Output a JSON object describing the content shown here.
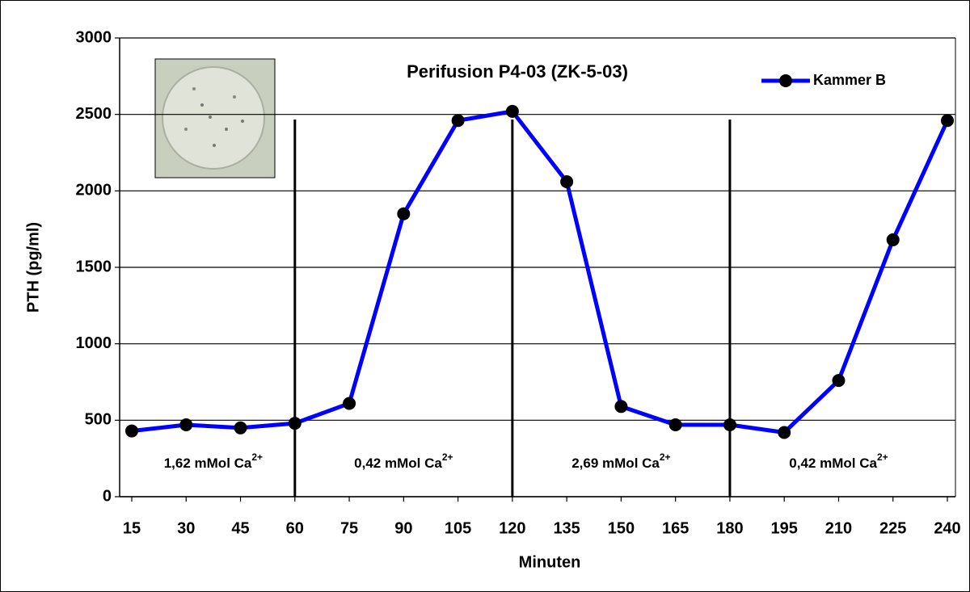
{
  "chart_data": {
    "type": "line",
    "title": "Perifusion P4-03 (ZK-5-03)",
    "x_label": "Minuten",
    "y_label": "PTH (pg/ml)",
    "x": [
      15,
      30,
      45,
      60,
      75,
      90,
      105,
      120,
      135,
      150,
      165,
      180,
      195,
      210,
      225,
      240
    ],
    "xlim": [
      15,
      240
    ],
    "xticks": [
      15,
      30,
      45,
      60,
      75,
      90,
      105,
      120,
      135,
      150,
      165,
      180,
      195,
      210,
      225,
      240
    ],
    "ylim": [
      0,
      3000
    ],
    "yticks": [
      0,
      500,
      1000,
      1500,
      2000,
      2500,
      3000
    ],
    "grid": true,
    "legend": "top-right",
    "series": [
      {
        "name": "Kammer B",
        "color": "#0000ff",
        "values": [
          430,
          470,
          450,
          480,
          610,
          1850,
          2460,
          2520,
          2060,
          590,
          470,
          470,
          420,
          760,
          1680,
          2460
        ]
      }
    ],
    "dividers": [
      60,
      120,
      180
    ],
    "annotations": [
      {
        "text": "1,62 mMol Ca",
        "sup": "2+"
      },
      {
        "text": "0,42 mMol Ca",
        "sup": "2+"
      },
      {
        "text": "2,69 mMol Ca",
        "sup": "2+"
      },
      {
        "text": "0,42 mMol Ca",
        "sup": "2+"
      }
    ]
  }
}
